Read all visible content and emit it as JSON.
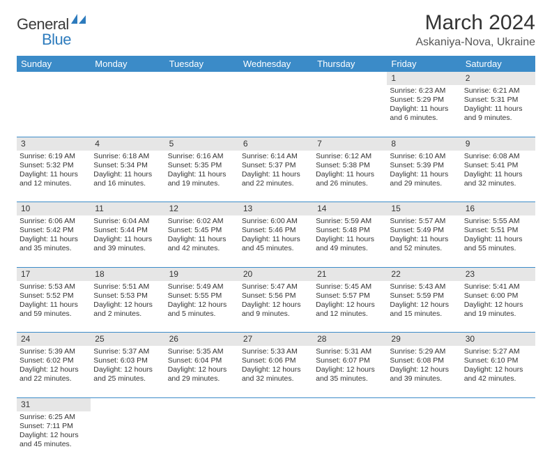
{
  "logo": {
    "text1": "General",
    "text2": "Blue"
  },
  "title": "March 2024",
  "location": "Askaniya-Nova, Ukraine",
  "colors": {
    "header_bg": "#3b8bc8",
    "header_text": "#ffffff",
    "daynum_bg": "#e6e6e6",
    "row_divider": "#3b8bc8",
    "body_text": "#333333",
    "logo_gray": "#3a3a3a",
    "logo_blue": "#2d7bbd"
  },
  "weekdays": [
    "Sunday",
    "Monday",
    "Tuesday",
    "Wednesday",
    "Thursday",
    "Friday",
    "Saturday"
  ],
  "weeks": [
    {
      "nums": [
        "",
        "",
        "",
        "",
        "",
        "1",
        "2"
      ],
      "cells": [
        null,
        null,
        null,
        null,
        null,
        {
          "sunrise": "Sunrise: 6:23 AM",
          "sunset": "Sunset: 5:29 PM",
          "daylight": "Daylight: 11 hours and 6 minutes."
        },
        {
          "sunrise": "Sunrise: 6:21 AM",
          "sunset": "Sunset: 5:31 PM",
          "daylight": "Daylight: 11 hours and 9 minutes."
        }
      ]
    },
    {
      "nums": [
        "3",
        "4",
        "5",
        "6",
        "7",
        "8",
        "9"
      ],
      "cells": [
        {
          "sunrise": "Sunrise: 6:19 AM",
          "sunset": "Sunset: 5:32 PM",
          "daylight": "Daylight: 11 hours and 12 minutes."
        },
        {
          "sunrise": "Sunrise: 6:18 AM",
          "sunset": "Sunset: 5:34 PM",
          "daylight": "Daylight: 11 hours and 16 minutes."
        },
        {
          "sunrise": "Sunrise: 6:16 AM",
          "sunset": "Sunset: 5:35 PM",
          "daylight": "Daylight: 11 hours and 19 minutes."
        },
        {
          "sunrise": "Sunrise: 6:14 AM",
          "sunset": "Sunset: 5:37 PM",
          "daylight": "Daylight: 11 hours and 22 minutes."
        },
        {
          "sunrise": "Sunrise: 6:12 AM",
          "sunset": "Sunset: 5:38 PM",
          "daylight": "Daylight: 11 hours and 26 minutes."
        },
        {
          "sunrise": "Sunrise: 6:10 AM",
          "sunset": "Sunset: 5:39 PM",
          "daylight": "Daylight: 11 hours and 29 minutes."
        },
        {
          "sunrise": "Sunrise: 6:08 AM",
          "sunset": "Sunset: 5:41 PM",
          "daylight": "Daylight: 11 hours and 32 minutes."
        }
      ]
    },
    {
      "nums": [
        "10",
        "11",
        "12",
        "13",
        "14",
        "15",
        "16"
      ],
      "cells": [
        {
          "sunrise": "Sunrise: 6:06 AM",
          "sunset": "Sunset: 5:42 PM",
          "daylight": "Daylight: 11 hours and 35 minutes."
        },
        {
          "sunrise": "Sunrise: 6:04 AM",
          "sunset": "Sunset: 5:44 PM",
          "daylight": "Daylight: 11 hours and 39 minutes."
        },
        {
          "sunrise": "Sunrise: 6:02 AM",
          "sunset": "Sunset: 5:45 PM",
          "daylight": "Daylight: 11 hours and 42 minutes."
        },
        {
          "sunrise": "Sunrise: 6:00 AM",
          "sunset": "Sunset: 5:46 PM",
          "daylight": "Daylight: 11 hours and 45 minutes."
        },
        {
          "sunrise": "Sunrise: 5:59 AM",
          "sunset": "Sunset: 5:48 PM",
          "daylight": "Daylight: 11 hours and 49 minutes."
        },
        {
          "sunrise": "Sunrise: 5:57 AM",
          "sunset": "Sunset: 5:49 PM",
          "daylight": "Daylight: 11 hours and 52 minutes."
        },
        {
          "sunrise": "Sunrise: 5:55 AM",
          "sunset": "Sunset: 5:51 PM",
          "daylight": "Daylight: 11 hours and 55 minutes."
        }
      ]
    },
    {
      "nums": [
        "17",
        "18",
        "19",
        "20",
        "21",
        "22",
        "23"
      ],
      "cells": [
        {
          "sunrise": "Sunrise: 5:53 AM",
          "sunset": "Sunset: 5:52 PM",
          "daylight": "Daylight: 11 hours and 59 minutes."
        },
        {
          "sunrise": "Sunrise: 5:51 AM",
          "sunset": "Sunset: 5:53 PM",
          "daylight": "Daylight: 12 hours and 2 minutes."
        },
        {
          "sunrise": "Sunrise: 5:49 AM",
          "sunset": "Sunset: 5:55 PM",
          "daylight": "Daylight: 12 hours and 5 minutes."
        },
        {
          "sunrise": "Sunrise: 5:47 AM",
          "sunset": "Sunset: 5:56 PM",
          "daylight": "Daylight: 12 hours and 9 minutes."
        },
        {
          "sunrise": "Sunrise: 5:45 AM",
          "sunset": "Sunset: 5:57 PM",
          "daylight": "Daylight: 12 hours and 12 minutes."
        },
        {
          "sunrise": "Sunrise: 5:43 AM",
          "sunset": "Sunset: 5:59 PM",
          "daylight": "Daylight: 12 hours and 15 minutes."
        },
        {
          "sunrise": "Sunrise: 5:41 AM",
          "sunset": "Sunset: 6:00 PM",
          "daylight": "Daylight: 12 hours and 19 minutes."
        }
      ]
    },
    {
      "nums": [
        "24",
        "25",
        "26",
        "27",
        "28",
        "29",
        "30"
      ],
      "cells": [
        {
          "sunrise": "Sunrise: 5:39 AM",
          "sunset": "Sunset: 6:02 PM",
          "daylight": "Daylight: 12 hours and 22 minutes."
        },
        {
          "sunrise": "Sunrise: 5:37 AM",
          "sunset": "Sunset: 6:03 PM",
          "daylight": "Daylight: 12 hours and 25 minutes."
        },
        {
          "sunrise": "Sunrise: 5:35 AM",
          "sunset": "Sunset: 6:04 PM",
          "daylight": "Daylight: 12 hours and 29 minutes."
        },
        {
          "sunrise": "Sunrise: 5:33 AM",
          "sunset": "Sunset: 6:06 PM",
          "daylight": "Daylight: 12 hours and 32 minutes."
        },
        {
          "sunrise": "Sunrise: 5:31 AM",
          "sunset": "Sunset: 6:07 PM",
          "daylight": "Daylight: 12 hours and 35 minutes."
        },
        {
          "sunrise": "Sunrise: 5:29 AM",
          "sunset": "Sunset: 6:08 PM",
          "daylight": "Daylight: 12 hours and 39 minutes."
        },
        {
          "sunrise": "Sunrise: 5:27 AM",
          "sunset": "Sunset: 6:10 PM",
          "daylight": "Daylight: 12 hours and 42 minutes."
        }
      ]
    },
    {
      "nums": [
        "31",
        "",
        "",
        "",
        "",
        "",
        ""
      ],
      "cells": [
        {
          "sunrise": "Sunrise: 6:25 AM",
          "sunset": "Sunset: 7:11 PM",
          "daylight": "Daylight: 12 hours and 45 minutes."
        },
        null,
        null,
        null,
        null,
        null,
        null
      ]
    }
  ]
}
